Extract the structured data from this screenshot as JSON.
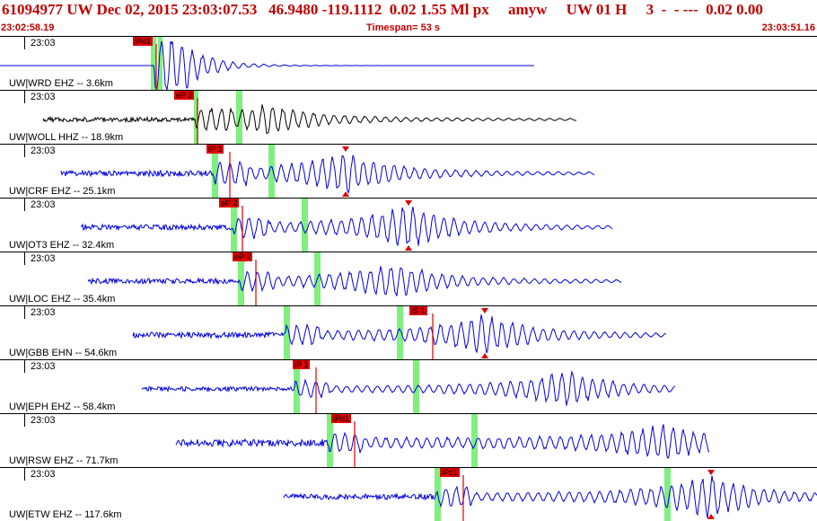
{
  "header": {
    "event_line": "61094977 UW Dec 02, 2015 23:03:07.53   46.9480 -119.1112  0.02 1.55 Ml px     amyw     UW 01 H     3  -  - ---  0.02 0.00",
    "start_time": "23:02:58.19",
    "timespan": "Timespan=  53 s",
    "end_time": "23:03:51.16"
  },
  "colors": {
    "header_text": "#c00000",
    "trace": "#0000e0",
    "trace_alt": "#000000",
    "pick": "#e00000",
    "window": "#7ff07f"
  },
  "tracks": [
    {
      "label": "UW|WRD EHZ -- 3.6km",
      "time_label": "23:03",
      "pick_label": "iPd1"
    },
    {
      "label": "UW|WOLL HHZ -- 18.9km",
      "time_label": "23:03",
      "pick_label": "eP 2"
    },
    {
      "label": "UW|CRF EHZ -- 25.1km",
      "time_label": "23:03",
      "pick_label": "iP 1"
    },
    {
      "label": "UW|OT3 EHZ -- 32.4km",
      "time_label": "23:03",
      "pick_label": "eP 2"
    },
    {
      "label": "UW|LOC EHZ -- 35.4km",
      "time_label": "23:03",
      "pick_label": "eP 2"
    },
    {
      "label": "UW|GBB EHN -- 54.6km",
      "time_label": "23:03",
      "pick_label": "iS 1"
    },
    {
      "label": "UW|EPH EHZ -- 58.4km",
      "time_label": "23:03",
      "pick_label": "iP 1"
    },
    {
      "label": "UW|RSW EHZ -- 71.7km",
      "time_label": "23:03",
      "pick_label": "iPd1"
    },
    {
      "label": "UW|ETW EHZ -- 117.6km",
      "time_label": "23:03",
      "pick_label": "iPc1"
    }
  ]
}
